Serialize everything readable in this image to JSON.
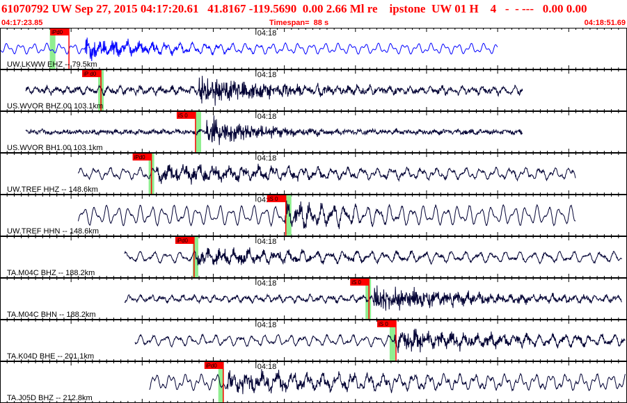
{
  "header": {
    "title": "61070792 UW Sep 27, 2015 04:17:20.61   41.8167 -119.5690  0.00 2.66 Ml re    ipstone  UW 01 H    4   -  - ---   0.00 0.00"
  },
  "timebar": {
    "start_time": "04:17:23.85",
    "timespan": "Timespan=  88 s",
    "end_time": "04:18:51.69"
  },
  "colors": {
    "header_text": "#ff0000",
    "trace_first": "#0000ff",
    "trace": "#000033",
    "pick_flag": "#ff0000",
    "pick_window": "#90ee90"
  },
  "chart_data": {
    "type": "line",
    "title": "",
    "xlabel": "",
    "ylabel": "",
    "x_start": "04:17:23.85",
    "x_end": "04:18:51.69",
    "timespan_s": 88,
    "minute_tick_label": "04:18",
    "minute_tick_offset_s": 36,
    "series": [
      {
        "name": "UW.LKWW EHZ -- 79.5km",
        "trace_start_s": 0,
        "trace_end_s": 70,
        "amplitude": 0.3,
        "noise": 0.0,
        "burst": {
          "at_s": 12,
          "amp": 0.45,
          "decay_s": 9
        },
        "picks": [
          {
            "label": "iPd0",
            "at_s": 9.7,
            "green_s": 7.4
          }
        ]
      },
      {
        "name": "US.WVOR BHZ.00 103.1km",
        "trace_start_s": 3.6,
        "trace_end_s": 73.5,
        "amplitude": 0.18,
        "noise": 0.12,
        "burst": {
          "at_s": 28,
          "amp": 0.7,
          "decay_s": 10
        },
        "picks": [
          {
            "label": "iP d0",
            "at_s": 14.2,
            "green_s": 14.2
          }
        ]
      },
      {
        "name": "US.WVOR BH1.00 103.1km",
        "trace_start_s": 3.6,
        "trace_end_s": 73.5,
        "amplitude": 0.08,
        "noise": 0.1,
        "burst": {
          "at_s": 29,
          "amp": 0.7,
          "decay_s": 7
        },
        "picks": [
          {
            "label": "iS 0",
            "at_s": 27.5,
            "green_s": 27.9
          }
        ]
      },
      {
        "name": "UW.TREF HHZ -- 148.6km",
        "trace_start_s": 11,
        "trace_end_s": 81,
        "amplitude": 0.32,
        "noise": 0.05,
        "burst": {
          "at_s": 22,
          "amp": 0.35,
          "decay_s": 20
        },
        "picks": [
          {
            "label": "iPd0",
            "at_s": 21.3,
            "green_s": 21.3
          }
        ]
      },
      {
        "name": "UW.TREF HHN -- 148.6km",
        "trace_start_s": 11,
        "trace_end_s": 81,
        "amplitude": 0.55,
        "noise": 0.03,
        "burst": {
          "at_s": 40,
          "amp": 0.4,
          "decay_s": 8
        },
        "picks": [
          {
            "label": "iS 0",
            "at_s": 40.2,
            "green_s": 40.6
          }
        ]
      },
      {
        "name": "TA.M04C BHZ -- 188.2km",
        "trace_start_s": 17.5,
        "trace_end_s": 87.5,
        "amplitude": 0.3,
        "noise": 0.05,
        "burst": {
          "at_s": 27.5,
          "amp": 0.35,
          "decay_s": 18
        },
        "picks": [
          {
            "label": "iPd0",
            "at_s": 27.3,
            "green_s": 27.5
          }
        ]
      },
      {
        "name": "TA.M04C BHN -- 188.2km",
        "trace_start_s": 17.5,
        "trace_end_s": 87.5,
        "amplitude": 0.18,
        "noise": 0.08,
        "burst": {
          "at_s": 52.5,
          "amp": 0.55,
          "decay_s": 14
        },
        "picks": [
          {
            "label": "iS 0",
            "at_s": 51.9,
            "green_s": 51.8
          }
        ]
      },
      {
        "name": "TA.K04D BHE -- 201.1km",
        "trace_start_s": 19,
        "trace_end_s": 89,
        "amplitude": 0.3,
        "noise": 0.05,
        "burst": {
          "at_s": 55.5,
          "amp": 0.4,
          "decay_s": 20
        },
        "picks": [
          {
            "label": "iS 0",
            "at_s": 55.7,
            "green_s": 55.2
          }
        ]
      },
      {
        "name": "TA.J05D BHZ -- 212.8km",
        "trace_start_s": 21,
        "trace_end_s": 91,
        "amplitude": 0.45,
        "noise": 0.03,
        "burst": {
          "at_s": 32,
          "amp": 0.4,
          "decay_s": 18
        },
        "picks": [
          {
            "label": "iPd0",
            "at_s": 31.4,
            "green_s": 31.1
          }
        ]
      }
    ]
  }
}
